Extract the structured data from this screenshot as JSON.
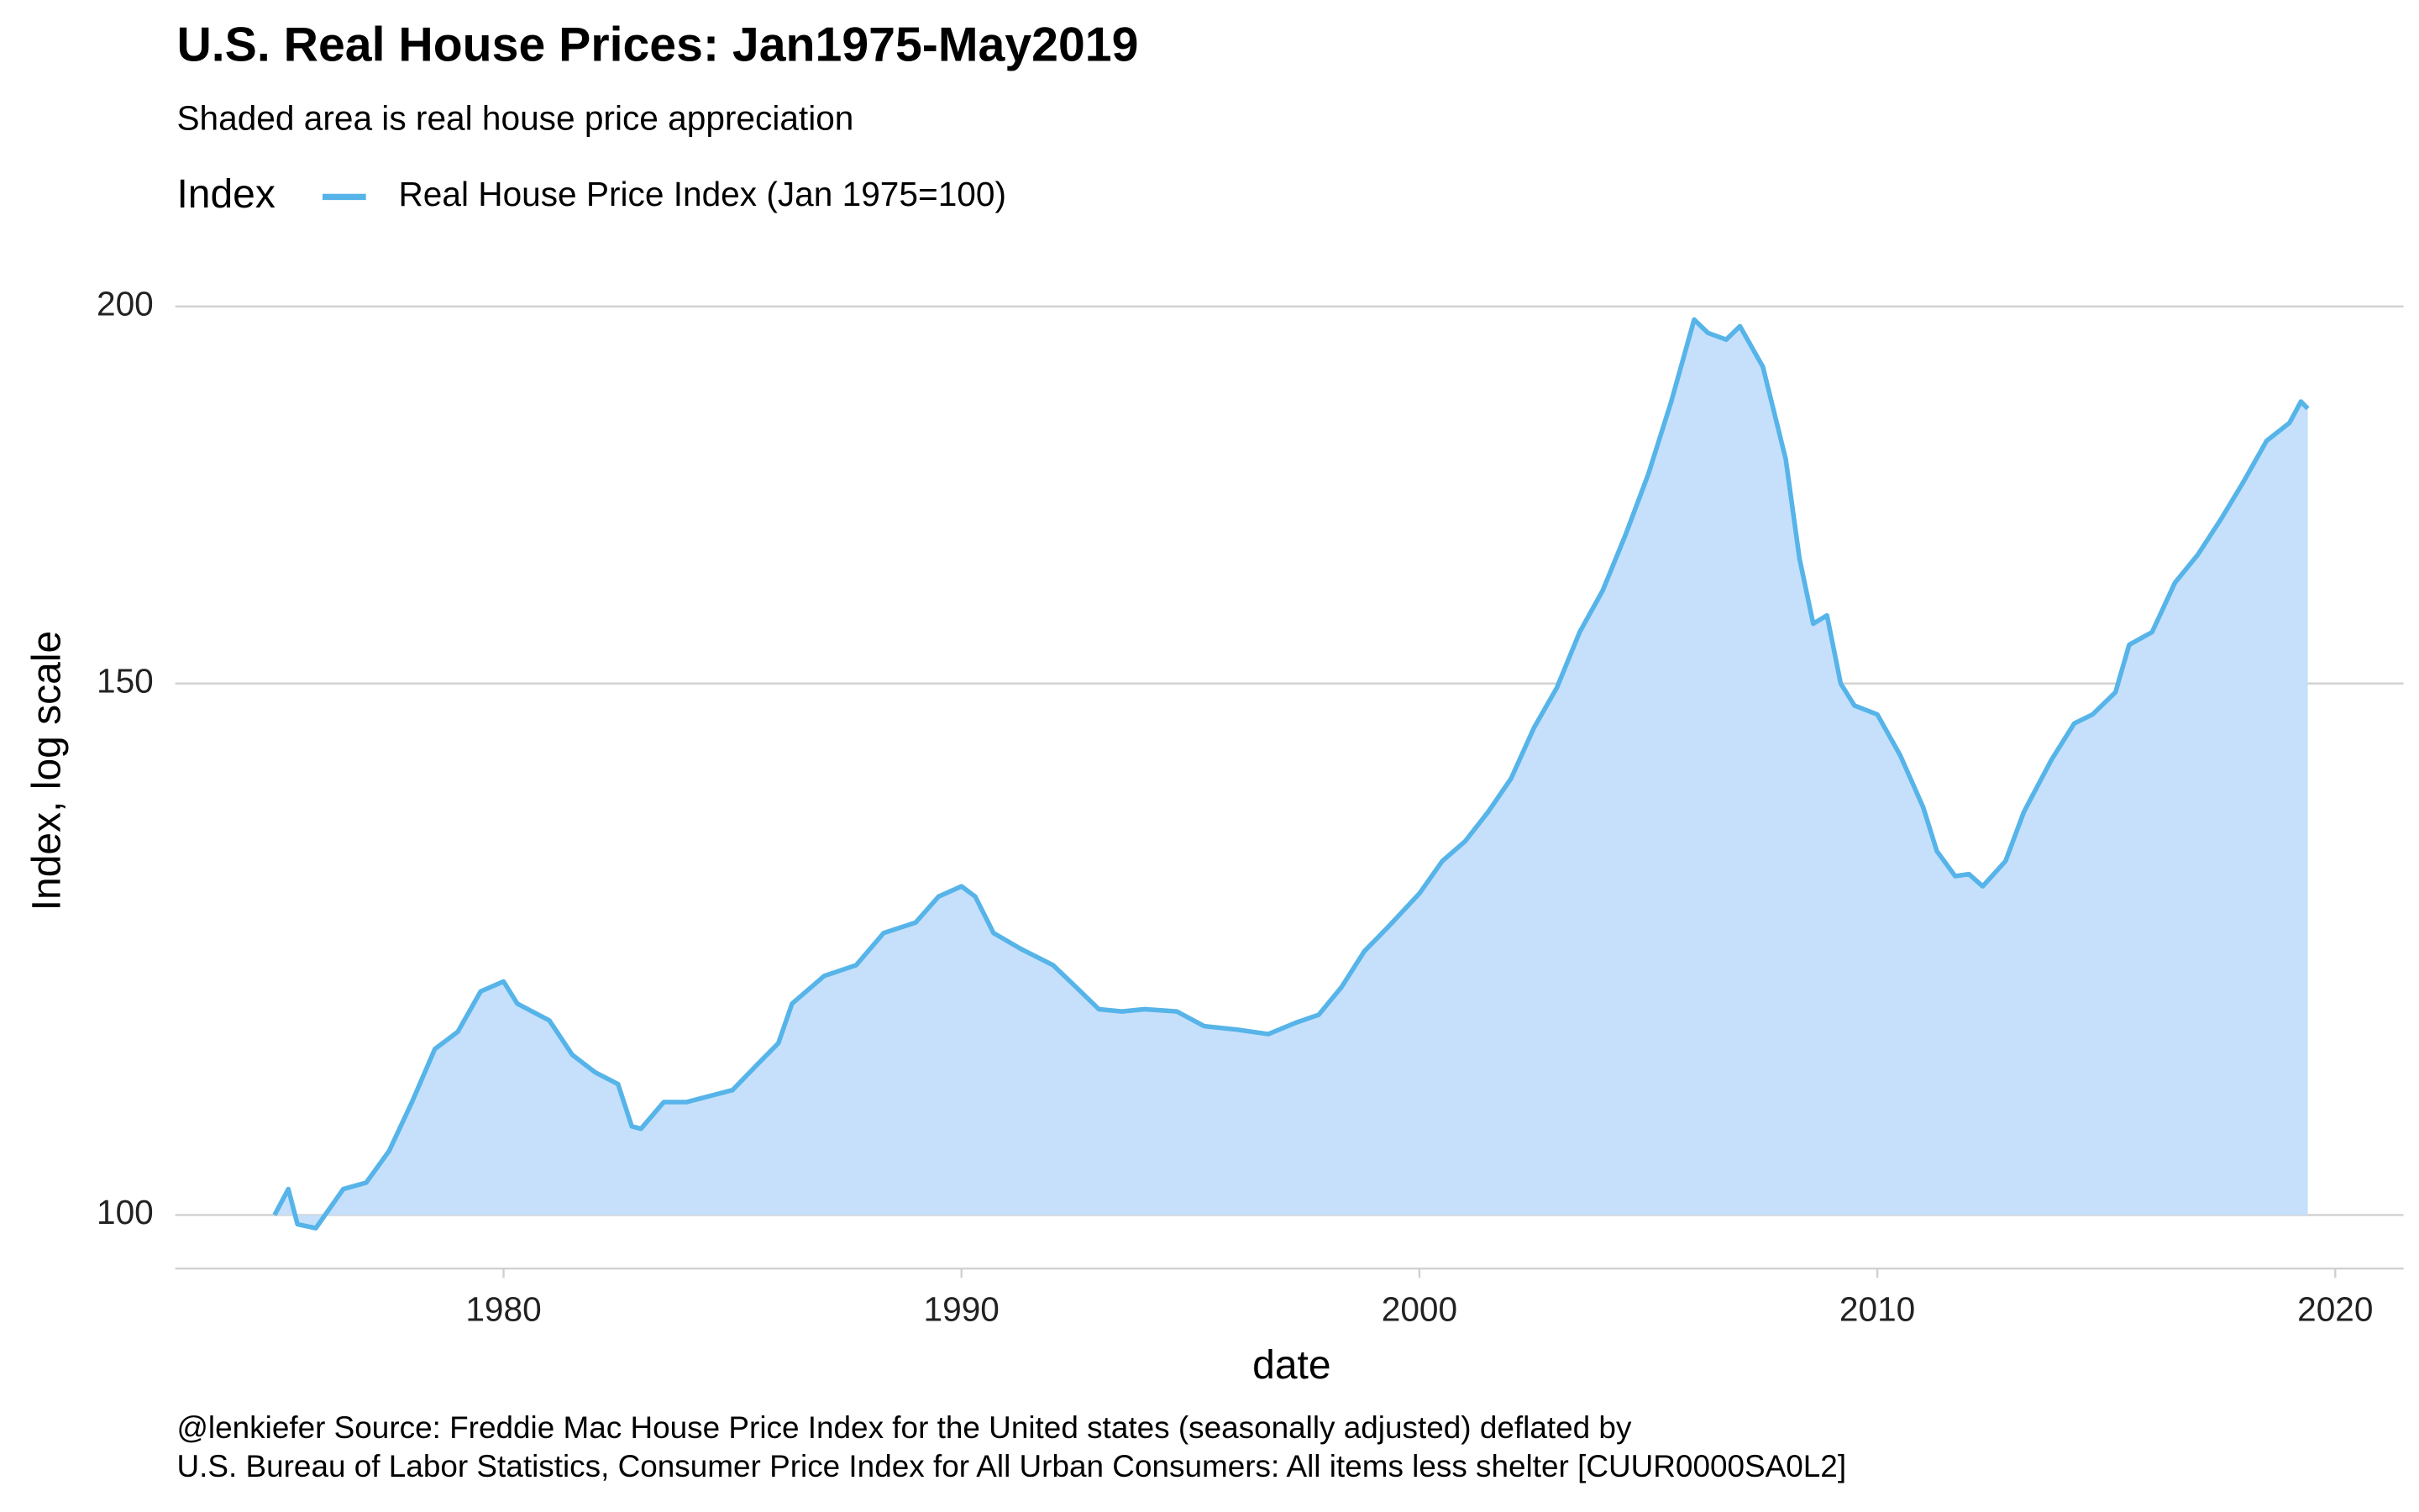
{
  "chart_data": {
    "type": "line",
    "title": "U.S. Real House Prices: Jan1975-May2019",
    "subtitle": "Shaded area is real house price appreciation",
    "legend_title": "Index",
    "legend_position": "top",
    "x_label": "date",
    "y_label": "Index, log scale",
    "caption": [
      "@lenkiefer Source: Freddie Mac House Price Index for the United states (seasonally adjusted) deflated by",
      "U.S. Bureau of Labor Statistics, Consumer Price Index for All Urban Consumers: All items less shelter [CUUR0000SA0L2]"
    ],
    "log_y": true,
    "grid": true,
    "fill_color": "#c6e0fb",
    "xlim": [
      1972.83,
      2021.49
    ],
    "xticks": [
      1980,
      1990,
      2000,
      2010,
      2020
    ],
    "ylim": [
      96,
      203
    ],
    "yticks": [
      100,
      150,
      200
    ],
    "x": [
      1975.0,
      1975.3,
      1975.5,
      1975.9,
      1976.5,
      1977.0,
      1977.5,
      1978.0,
      1978.5,
      1979.0,
      1979.5,
      1980.0,
      1980.3,
      1981.0,
      1981.5,
      1982.0,
      1982.5,
      1982.8,
      1983.0,
      1983.5,
      1984.0,
      1984.5,
      1985.0,
      1985.5,
      1986.0,
      1986.3,
      1987.0,
      1987.7,
      1988.3,
      1989.0,
      1989.5,
      1990.0,
      1990.3,
      1990.7,
      1991.3,
      1992.0,
      1992.5,
      1993.0,
      1993.5,
      1994.0,
      1994.7,
      1995.3,
      1996.0,
      1996.7,
      1997.3,
      1997.8,
      1998.3,
      1998.8,
      1999.3,
      2000.0,
      2000.5,
      2001.0,
      2001.5,
      2002.0,
      2002.5,
      2003.0,
      2003.5,
      2004.0,
      2004.5,
      2005.0,
      2005.5,
      2006.0,
      2006.3,
      2006.7,
      2007.0,
      2007.5,
      2008.0,
      2008.3,
      2008.6,
      2008.9,
      2009.2,
      2009.5,
      2010.0,
      2010.5,
      2011.0,
      2011.3,
      2011.7,
      2012.0,
      2012.3,
      2012.8,
      2013.2,
      2013.8,
      2014.3,
      2014.7,
      2015.2,
      2015.5,
      2016.0,
      2016.5,
      2017.0,
      2017.5,
      2018.0,
      2018.5,
      2019.0,
      2019.25,
      2019.4
    ],
    "series": [
      {
        "name": "Real House Price Index (Jan 1975=100)",
        "color": "#56b4e9",
        "values": [
          100,
          102,
          99.3,
          99,
          102,
          102.5,
          105,
          109,
          113.5,
          115,
          118.6,
          119.5,
          117.5,
          116,
          113,
          111.5,
          110.5,
          107,
          106.8,
          109,
          109,
          109.5,
          110,
          112,
          114,
          117.5,
          120,
          121,
          124,
          125,
          127.5,
          128.5,
          127.5,
          124,
          122.5,
          121,
          119,
          117,
          116.8,
          117,
          116.8,
          115.5,
          115.2,
          114.8,
          115.8,
          116.5,
          119,
          122.3,
          124.5,
          127.8,
          131,
          133,
          136,
          139.5,
          145,
          149.5,
          156,
          161,
          168,
          176,
          186,
          198,
          196,
          195,
          197,
          191,
          178,
          165,
          157,
          158,
          150,
          147.5,
          146.5,
          142,
          136.5,
          132,
          129.5,
          129.7,
          128.5,
          131,
          136,
          141.5,
          145.5,
          146.5,
          149,
          154.5,
          156,
          162,
          165.5,
          170,
          175,
          180.5,
          183,
          186,
          185
        ]
      }
    ]
  }
}
